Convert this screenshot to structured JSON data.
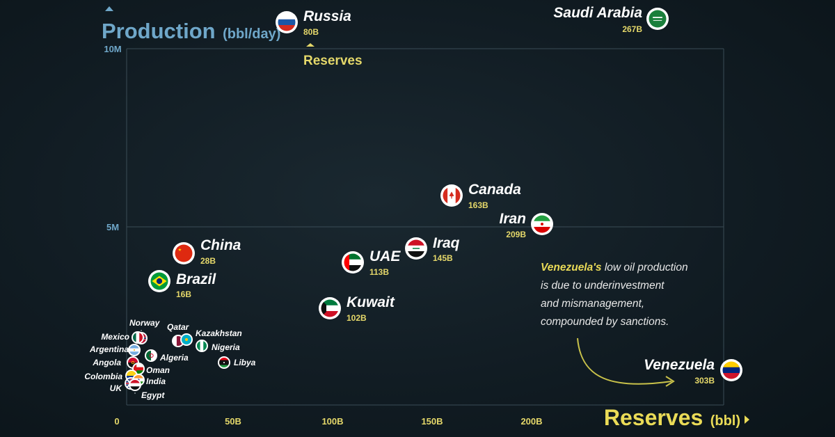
{
  "chart_data": {
    "type": "scatter",
    "ylabel": "Production",
    "ylabel_unit": "(bbl/day)",
    "xlabel": "Reserves",
    "xlabel_unit": "(bbl)",
    "reserves_marker_label": "Reserves",
    "x_ticks": [
      "0",
      "50B",
      "100B",
      "150B",
      "200B"
    ],
    "y_ticks": [
      "5M",
      "10M"
    ],
    "xlim": [
      0,
      305
    ],
    "ylim": [
      0,
      11
    ],
    "grid": true,
    "points": [
      {
        "name": "Russia",
        "label": "80B",
        "x": 80,
        "y": 10.8,
        "flag": "russia",
        "size": "large"
      },
      {
        "name": "Saudi Arabia",
        "label": "267B",
        "x": 267,
        "y": 10.6,
        "flag": "saudi-arabia",
        "size": "large"
      },
      {
        "name": "Canada",
        "label": "163B",
        "x": 163,
        "y": 5.8,
        "flag": "canada",
        "size": "large"
      },
      {
        "name": "Iran",
        "label": "209B",
        "x": 209,
        "y": 5.0,
        "flag": "iran",
        "size": "large"
      },
      {
        "name": "Iraq",
        "label": "145B",
        "x": 145,
        "y": 4.3,
        "flag": "iraq",
        "size": "large"
      },
      {
        "name": "UAE",
        "label": "113B",
        "x": 113,
        "y": 3.9,
        "flag": "uae",
        "size": "large"
      },
      {
        "name": "China",
        "label": "28B",
        "x": 28,
        "y": 4.2,
        "flag": "china",
        "size": "large"
      },
      {
        "name": "Brazil",
        "label": "16B",
        "x": 16,
        "y": 3.3,
        "flag": "brazil",
        "size": "large"
      },
      {
        "name": "Kuwait",
        "label": "102B",
        "x": 102,
        "y": 2.6,
        "flag": "kuwait",
        "size": "large"
      },
      {
        "name": "Venezuela",
        "label": "303B",
        "x": 303,
        "y": 1.2,
        "flag": "venezuela",
        "size": "large"
      },
      {
        "name": "Norway",
        "x": 8,
        "y": 1.9,
        "flag": "norway",
        "size": "small"
      },
      {
        "name": "Mexico",
        "x": 6,
        "y": 1.9,
        "flag": "mexico",
        "size": "small"
      },
      {
        "name": "Qatar",
        "x": 25,
        "y": 1.85,
        "flag": "qatar",
        "size": "small"
      },
      {
        "name": "Kazakhstan",
        "x": 30,
        "y": 1.85,
        "flag": "kazakhstan",
        "size": "small"
      },
      {
        "name": "Nigeria",
        "x": 37,
        "y": 1.7,
        "flag": "nigeria",
        "size": "small"
      },
      {
        "name": "Argentina",
        "x": 2.5,
        "y": 1.5,
        "flag": "argentina",
        "size": "small"
      },
      {
        "name": "Algeria",
        "x": 12,
        "y": 1.5,
        "flag": "algeria",
        "size": "small"
      },
      {
        "name": "Angola",
        "x": 3,
        "y": 1.3,
        "flag": "angola",
        "size": "small"
      },
      {
        "name": "Libya",
        "x": 48,
        "y": 1.3,
        "flag": "libya",
        "size": "small"
      },
      {
        "name": "Oman",
        "x": 5,
        "y": 1.1,
        "flag": "oman",
        "size": "small"
      },
      {
        "name": "Colombia",
        "x": 2,
        "y": 0.8,
        "flag": "colombia",
        "size": "small"
      },
      {
        "name": "India",
        "x": 5,
        "y": 0.7,
        "flag": "india",
        "size": "small"
      },
      {
        "name": "UK",
        "x": 2.5,
        "y": 0.7,
        "flag": "uk",
        "size": "small"
      },
      {
        "name": "Egypt",
        "x": 3.5,
        "y": 0.6,
        "flag": "egypt",
        "size": "small"
      }
    ],
    "annotation": {
      "highlight": "Venezuela's",
      "text": " low oil production is due to underinvestment and mismanagement, compounded by sanctions."
    }
  },
  "colors": {
    "background": "#111c23",
    "production_axis": "#6fa7c9",
    "reserves_axis": "#e5d86a",
    "grid": "#3a4c56",
    "highlight": "#eadb57"
  }
}
